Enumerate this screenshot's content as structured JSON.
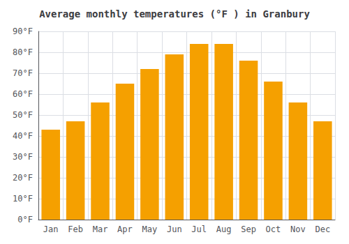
{
  "chart_data": {
    "type": "bar",
    "title": "Average monthly temperatures (°F ) in Granbury",
    "categories": [
      "Jan",
      "Feb",
      "Mar",
      "Apr",
      "May",
      "Jun",
      "Jul",
      "Aug",
      "Sep",
      "Oct",
      "Nov",
      "Dec"
    ],
    "values": [
      43,
      47,
      56,
      65,
      72,
      79,
      84,
      84,
      76,
      66,
      56,
      47
    ],
    "color": "#F5A000",
    "ylim": [
      0,
      90
    ],
    "yticks": [
      {
        "value": 0,
        "label": "0°F"
      },
      {
        "value": 10,
        "label": "10°F"
      },
      {
        "value": 20,
        "label": "20°F"
      },
      {
        "value": 30,
        "label": "30°F"
      },
      {
        "value": 40,
        "label": "40°F"
      },
      {
        "value": 50,
        "label": "50°F"
      },
      {
        "value": 60,
        "label": "60°F"
      },
      {
        "value": 70,
        "label": "70°F"
      },
      {
        "value": 80,
        "label": "80°F"
      },
      {
        "value": 90,
        "label": "90°F"
      }
    ],
    "grid": true
  }
}
